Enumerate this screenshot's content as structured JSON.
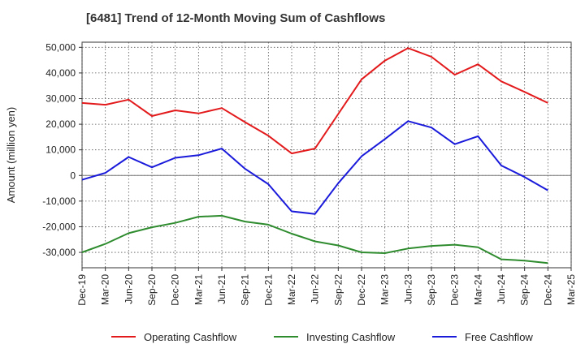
{
  "chart_data": {
    "type": "line",
    "title": "[6481]  Trend of 12-Month Moving Sum of Cashflows",
    "ylabel": "Amount (million yen)",
    "xlabel": "",
    "ylim": [
      -36000,
      52000
    ],
    "yticks": [
      50000,
      40000,
      30000,
      20000,
      10000,
      0,
      -10000,
      -20000,
      -30000
    ],
    "ytick_labels": [
      "50,000",
      "40,000",
      "30,000",
      "20,000",
      "10,000",
      "0",
      "-10,000",
      "-20,000",
      "-30,000"
    ],
    "categories": [
      "Dec-19",
      "Mar-20",
      "Jun-20",
      "Sep-20",
      "Dec-20",
      "Mar-21",
      "Jun-21",
      "Sep-21",
      "Dec-21",
      "Mar-22",
      "Jun-22",
      "Sep-22",
      "Dec-22",
      "Mar-23",
      "Jun-23",
      "Sep-23",
      "Dec-23",
      "Mar-24",
      "Jun-24",
      "Sep-24",
      "Dec-24",
      "Mar-25"
    ],
    "grid": true,
    "legend_position": "bottom",
    "series": [
      {
        "name": "Operating Cashflow",
        "color": "#e31a1c",
        "values": [
          28300,
          27600,
          29600,
          23200,
          25400,
          24200,
          26300,
          20800,
          15500,
          8600,
          10500,
          24000,
          37500,
          44800,
          49700,
          46300,
          39300,
          43400,
          36700,
          32600,
          28300,
          null
        ]
      },
      {
        "name": "Investing Cashflow",
        "color": "#2e8b2e",
        "values": [
          -30000,
          -26700,
          -22500,
          -20200,
          -18500,
          -16100,
          -15700,
          -18000,
          -19200,
          -22700,
          -25700,
          -27300,
          -30000,
          -30300,
          -28500,
          -27500,
          -27000,
          -28000,
          -32700,
          -33200,
          -34200,
          null
        ]
      },
      {
        "name": "Free Cashflow",
        "color": "#1a1adb",
        "values": [
          -1700,
          1000,
          7200,
          3200,
          6900,
          7900,
          10500,
          2600,
          -3400,
          -14000,
          -15000,
          -3000,
          7500,
          14200,
          21200,
          18700,
          12200,
          15300,
          3900,
          -600,
          -5800,
          null
        ]
      }
    ]
  }
}
